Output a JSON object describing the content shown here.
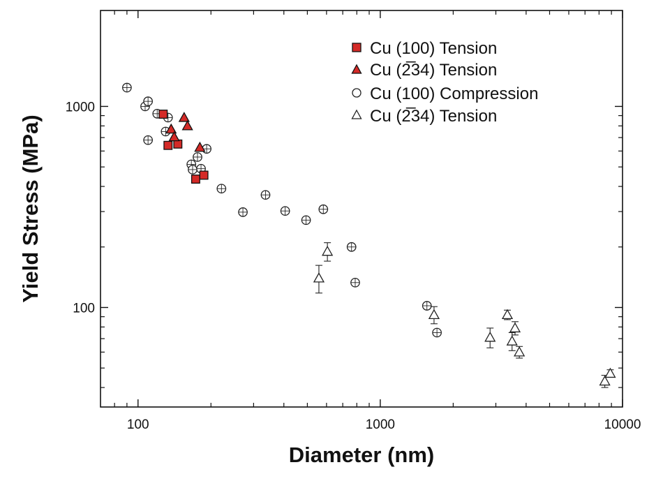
{
  "chart_data": {
    "type": "scatter",
    "title": "",
    "xlabel": "Diameter (nm)",
    "ylabel": "Yield Stress (MPa)",
    "xscale": "log",
    "yscale": "log",
    "xlim": [
      70,
      10000
    ],
    "ylim": [
      32,
      3000
    ],
    "x_ticks": [
      100,
      1000,
      10000
    ],
    "x_tick_labels": [
      "100",
      "1000",
      "10000"
    ],
    "y_ticks": [
      100,
      1000
    ],
    "y_tick_labels": [
      "100",
      "1000"
    ],
    "grid": false,
    "legend_position": "top-right",
    "series": [
      {
        "name": "Cu (100) Tension",
        "marker": "square",
        "filled": true,
        "color": "#d42a27",
        "points": [
          {
            "x": 127,
            "y": 915
          },
          {
            "x": 133,
            "y": 640
          },
          {
            "x": 146,
            "y": 650
          },
          {
            "x": 173,
            "y": 435
          },
          {
            "x": 187,
            "y": 455
          }
        ]
      },
      {
        "name": "Cu (2̅34) Tension",
        "marker": "triangle",
        "filled": true,
        "color": "#d42a27",
        "points": [
          {
            "x": 137,
            "y": 770
          },
          {
            "x": 141,
            "y": 705
          },
          {
            "x": 155,
            "y": 880
          },
          {
            "x": 160,
            "y": 800
          },
          {
            "x": 180,
            "y": 625
          }
        ]
      },
      {
        "name": "Cu (100) Compression",
        "marker": "circle",
        "filled": false,
        "color": "#222222",
        "points": [
          {
            "x": 90,
            "y": 1240
          },
          {
            "x": 107,
            "y": 1000
          },
          {
            "x": 110,
            "y": 1060
          },
          {
            "x": 110,
            "y": 680
          },
          {
            "x": 120,
            "y": 920
          },
          {
            "x": 130,
            "y": 750
          },
          {
            "x": 133,
            "y": 880
          },
          {
            "x": 166,
            "y": 515
          },
          {
            "x": 168,
            "y": 485
          },
          {
            "x": 176,
            "y": 560
          },
          {
            "x": 182,
            "y": 490
          },
          {
            "x": 192,
            "y": 615
          },
          {
            "x": 221,
            "y": 390
          },
          {
            "x": 271,
            "y": 298
          },
          {
            "x": 336,
            "y": 363
          },
          {
            "x": 405,
            "y": 302
          },
          {
            "x": 494,
            "y": 272
          },
          {
            "x": 582,
            "y": 308
          },
          {
            "x": 761,
            "y": 200
          },
          {
            "x": 788,
            "y": 133
          },
          {
            "x": 1558,
            "y": 102
          },
          {
            "x": 1714,
            "y": 75
          }
        ]
      },
      {
        "name": "Cu (2̅34) Tension",
        "marker": "triangle",
        "filled": false,
        "color": "#222222",
        "points": [
          {
            "x": 558,
            "y": 140,
            "err": 22
          },
          {
            "x": 605,
            "y": 190,
            "err": 20
          },
          {
            "x": 1667,
            "y": 92,
            "err": 9
          },
          {
            "x": 2840,
            "y": 71,
            "err": 8
          },
          {
            "x": 3347,
            "y": 92,
            "err": 5
          },
          {
            "x": 3500,
            "y": 68,
            "err": 7
          },
          {
            "x": 3600,
            "y": 79,
            "err": 6
          },
          {
            "x": 3750,
            "y": 60,
            "err": 4
          },
          {
            "x": 8450,
            "y": 43,
            "err": 3
          },
          {
            "x": 8900,
            "y": 47,
            "err": 2
          }
        ]
      }
    ]
  }
}
